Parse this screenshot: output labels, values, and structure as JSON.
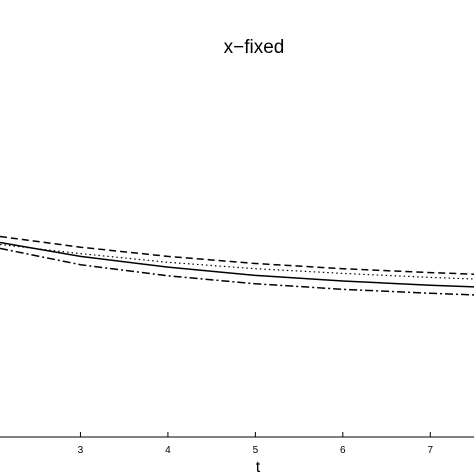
{
  "chart_data": {
    "type": "line",
    "title": "x−fixed",
    "xlabel": "t",
    "ylabel": "",
    "xlim": [
      2.08,
      7.5
    ],
    "ylim": [
      0,
      1
    ],
    "x_ticks": [
      {
        "value": 3,
        "label": "3"
      },
      {
        "value": 4,
        "label": "4"
      },
      {
        "value": 5,
        "label": "5"
      },
      {
        "value": 6,
        "label": "6"
      },
      {
        "value": 7,
        "label": "7"
      }
    ],
    "grid": false,
    "series": [
      {
        "style": "dashed",
        "x": [
          2.08,
          3,
          4,
          5,
          6,
          7,
          7.5
        ],
        "y": [
          0.505,
          0.478,
          0.455,
          0.437,
          0.424,
          0.414,
          0.41
        ]
      },
      {
        "style": "dotted",
        "x": [
          2.08,
          3,
          4,
          5,
          6,
          7,
          7.5
        ],
        "y": [
          0.485,
          0.462,
          0.44,
          0.424,
          0.412,
          0.402,
          0.398
        ]
      },
      {
        "style": "solid",
        "x": [
          2.08,
          3,
          4,
          5,
          6,
          7,
          7.5
        ],
        "y": [
          0.49,
          0.455,
          0.428,
          0.407,
          0.393,
          0.382,
          0.378
        ]
      },
      {
        "style": "dashdot",
        "x": [
          2.08,
          3,
          4,
          5,
          6,
          7,
          7.5
        ],
        "y": [
          0.475,
          0.434,
          0.406,
          0.386,
          0.372,
          0.362,
          0.358
        ]
      }
    ]
  }
}
